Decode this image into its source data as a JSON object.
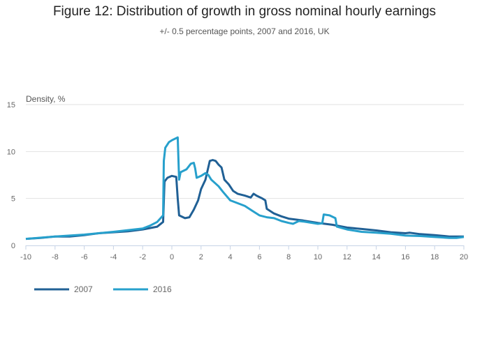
{
  "chart_data": {
    "type": "line",
    "title": "Figure 12: Distribution of growth in gross nominal hourly earnings",
    "subtitle": "+/- 0.5 percentage points, 2007 and 2016, UK",
    "ylabel": "Density, %",
    "xlabel": "",
    "xlim": [
      -10,
      20
    ],
    "ylim": [
      0,
      15
    ],
    "xticks": [
      -10,
      -8,
      -6,
      -4,
      -2,
      0,
      2,
      4,
      6,
      8,
      10,
      12,
      14,
      16,
      18,
      20
    ],
    "yticks": [
      0,
      5,
      10,
      15
    ],
    "grid": "horizontal",
    "legend": "bottom-left",
    "series": [
      {
        "name": "2007",
        "color": "#206095",
        "x": [
          -10,
          -9,
          -8,
          -7,
          -6,
          -5,
          -4,
          -3,
          -2,
          -1,
          -0.6,
          -0.5,
          -0.3,
          0,
          0.3,
          0.4,
          0.5,
          0.9,
          1.2,
          1.5,
          1.8,
          2.0,
          2.3,
          2.6,
          2.8,
          3.0,
          3.2,
          3.4,
          3.6,
          3.9,
          4.2,
          4.5,
          5,
          5.4,
          5.6,
          5.8,
          6.2,
          6.4,
          6.5,
          7,
          7.5,
          8,
          9,
          10,
          11,
          12,
          13,
          14,
          15,
          16,
          16.3,
          17,
          18,
          19,
          19.5,
          20
        ],
        "y": [
          0.7,
          0.8,
          0.95,
          0.95,
          1.1,
          1.3,
          1.4,
          1.5,
          1.7,
          2.0,
          2.5,
          6.8,
          7.2,
          7.4,
          7.3,
          5.0,
          3.2,
          2.9,
          3.0,
          3.8,
          4.8,
          6.0,
          7.0,
          9.0,
          9.1,
          9.0,
          8.6,
          8.3,
          7.0,
          6.5,
          5.8,
          5.5,
          5.3,
          5.1,
          5.5,
          5.3,
          5.0,
          4.8,
          3.9,
          3.4,
          3.1,
          2.85,
          2.65,
          2.4,
          2.2,
          1.9,
          1.75,
          1.6,
          1.4,
          1.3,
          1.35,
          1.2,
          1.1,
          0.95,
          0.95,
          0.95
        ]
      },
      {
        "name": "2016",
        "color": "#27a0cc",
        "x": [
          -10,
          -8,
          -6,
          -4,
          -2,
          -1.5,
          -1,
          -0.6,
          -0.55,
          -0.45,
          -0.2,
          0,
          0.4,
          0.5,
          0.6,
          1,
          1.3,
          1.5,
          1.6,
          1.7,
          2,
          2.3,
          2.5,
          2.7,
          3.2,
          3.5,
          4,
          4.5,
          5,
          5.5,
          6,
          6.5,
          7,
          7.5,
          8,
          8.3,
          8.7,
          9,
          10,
          10.3,
          10.4,
          10.8,
          11.2,
          11.3,
          12,
          13,
          14,
          15,
          16,
          17,
          18,
          19,
          19.5,
          20
        ],
        "y": [
          0.7,
          0.95,
          1.15,
          1.45,
          1.8,
          2.1,
          2.5,
          3.2,
          9.0,
          10.4,
          11.0,
          11.2,
          11.5,
          7.0,
          7.8,
          8.1,
          8.7,
          8.8,
          8.2,
          7.2,
          7.4,
          7.7,
          7.5,
          7.0,
          6.3,
          5.7,
          4.8,
          4.5,
          4.2,
          3.7,
          3.2,
          3.0,
          2.9,
          2.6,
          2.4,
          2.3,
          2.6,
          2.55,
          2.3,
          2.35,
          3.3,
          3.2,
          2.9,
          2.0,
          1.7,
          1.45,
          1.35,
          1.25,
          1.05,
          1.0,
          0.9,
          0.8,
          0.8,
          0.9
        ]
      }
    ]
  }
}
